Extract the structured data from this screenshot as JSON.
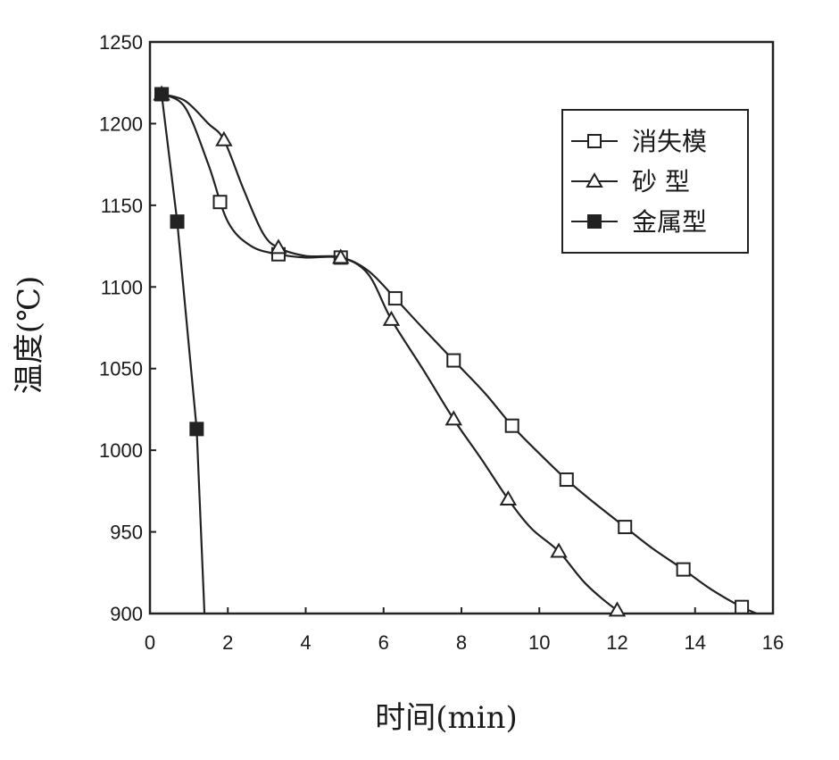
{
  "chart_data": {
    "type": "line",
    "title": "",
    "xlabel": "时间(min)",
    "ylabel": "温度(℃)",
    "xlim": [
      0,
      16
    ],
    "ylim": [
      900,
      1250
    ],
    "xticks": [
      0,
      2,
      4,
      6,
      8,
      10,
      12,
      14,
      16
    ],
    "yticks": [
      900,
      950,
      1000,
      1050,
      1100,
      1150,
      1200,
      1250
    ],
    "grid": false,
    "legend_position": "top-right",
    "series": [
      {
        "name": "消失模",
        "marker": "square-open",
        "curve": [
          [
            0.3,
            1218
          ],
          [
            0.9,
            1210
          ],
          [
            1.5,
            1175
          ],
          [
            2.0,
            1140
          ],
          [
            2.6,
            1125
          ],
          [
            3.3,
            1120
          ],
          [
            4.0,
            1118
          ],
          [
            4.9,
            1118
          ],
          [
            5.6,
            1110
          ],
          [
            6.3,
            1093
          ],
          [
            7.0,
            1075
          ],
          [
            7.8,
            1055
          ],
          [
            8.6,
            1035
          ],
          [
            9.3,
            1015
          ],
          [
            10.0,
            998
          ],
          [
            10.7,
            982
          ],
          [
            11.4,
            968
          ],
          [
            12.2,
            953
          ],
          [
            12.9,
            940
          ],
          [
            13.7,
            927
          ],
          [
            14.4,
            915
          ],
          [
            15.2,
            904
          ],
          [
            15.8,
            898
          ]
        ],
        "markers": [
          [
            0.3,
            1218
          ],
          [
            1.8,
            1152
          ],
          [
            3.3,
            1120
          ],
          [
            4.9,
            1118
          ],
          [
            6.3,
            1093
          ],
          [
            7.8,
            1055
          ],
          [
            9.3,
            1015
          ],
          [
            10.7,
            982
          ],
          [
            12.2,
            953
          ],
          [
            13.7,
            927
          ],
          [
            15.2,
            904
          ]
        ]
      },
      {
        "name": "砂 型",
        "marker": "triangle-open",
        "curve": [
          [
            0.3,
            1218
          ],
          [
            0.9,
            1214
          ],
          [
            1.5,
            1200
          ],
          [
            1.9,
            1190
          ],
          [
            2.4,
            1160
          ],
          [
            2.9,
            1133
          ],
          [
            3.3,
            1124
          ],
          [
            4.0,
            1119
          ],
          [
            4.9,
            1118
          ],
          [
            5.6,
            1108
          ],
          [
            6.2,
            1080
          ],
          [
            7.0,
            1050
          ],
          [
            7.8,
            1019
          ],
          [
            8.5,
            995
          ],
          [
            9.2,
            970
          ],
          [
            9.8,
            952
          ],
          [
            10.5,
            938
          ],
          [
            11.2,
            918
          ],
          [
            12.0,
            902
          ],
          [
            12.4,
            898
          ]
        ],
        "markers": [
          [
            0.3,
            1218
          ],
          [
            1.9,
            1190
          ],
          [
            3.3,
            1124
          ],
          [
            4.9,
            1118
          ],
          [
            6.2,
            1080
          ],
          [
            7.8,
            1019
          ],
          [
            9.2,
            970
          ],
          [
            10.5,
            938
          ],
          [
            12.0,
            902
          ]
        ]
      },
      {
        "name": "金属型",
        "marker": "square-filled",
        "curve": [
          [
            0.3,
            1218
          ],
          [
            0.7,
            1140
          ],
          [
            1.2,
            1013
          ],
          [
            1.4,
            900
          ]
        ],
        "markers": [
          [
            0.3,
            1218
          ],
          [
            0.7,
            1140
          ],
          [
            1.2,
            1013
          ]
        ]
      }
    ]
  }
}
